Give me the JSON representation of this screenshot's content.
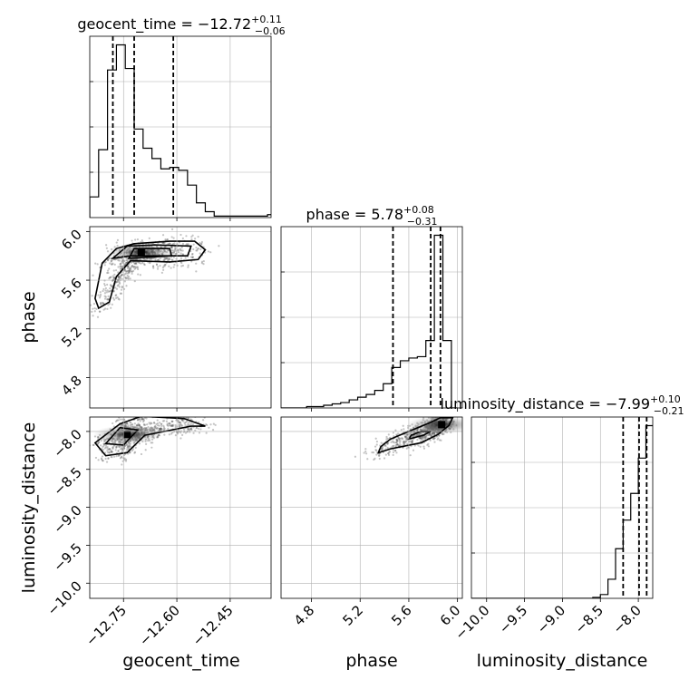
{
  "chart_data": {
    "type": "corner",
    "parameters": [
      "geocent_time",
      "phase",
      "luminosity_distance"
    ],
    "titles": [
      {
        "name": "geocent_time",
        "prefix": "geocent_time = ",
        "median": "−12.72",
        "upper": "+0.11",
        "lower": "−0.06"
      },
      {
        "name": "phase",
        "prefix": "phase = ",
        "median": "5.78",
        "upper": "+0.08",
        "lower": "−0.31"
      },
      {
        "name": "luminosity_distance",
        "prefix": "luminosity_distance = ",
        "median": "−7.99",
        "upper": "+0.10",
        "lower": "−0.21"
      }
    ],
    "ranges": {
      "geocent_time": [
        -12.845,
        -12.335
      ],
      "phase": [
        4.55,
        6.04
      ],
      "luminosity_distance": [
        -10.2,
        -7.81
      ]
    },
    "ticks": {
      "geocent_time": {
        "values": [
          -12.75,
          -12.6,
          -12.45
        ],
        "labels": [
          "−12.75",
          "−12.60",
          "−12.45"
        ]
      },
      "phase": {
        "values": [
          4.8,
          5.2,
          5.6,
          6.0
        ],
        "labels": [
          "4.8",
          "5.2",
          "5.6",
          "6.0"
        ]
      },
      "luminosity_distance": {
        "values": [
          -10.0,
          -9.5,
          -9.0,
          -8.5,
          -8.0
        ],
        "labels": [
          "−10.0",
          "−9.5",
          "−9.0",
          "−8.5",
          "−8.0"
        ]
      }
    },
    "quantiles": {
      "geocent_time": [
        -12.78,
        -12.72,
        -12.61
      ],
      "phase": [
        5.47,
        5.78,
        5.86
      ],
      "luminosity_distance": [
        -8.2,
        -7.99,
        -7.89
      ]
    },
    "histograms": {
      "geocent_time": {
        "bins": [
          -12.845,
          -12.82,
          -12.795,
          -12.77,
          -12.745,
          -12.72,
          -12.695,
          -12.67,
          -12.645,
          -12.62,
          -12.595,
          -12.57,
          -12.545,
          -12.52,
          -12.495,
          -12.47,
          -12.445,
          -12.42,
          -12.395,
          -12.37,
          -12.345,
          -12.335
        ],
        "counts": [
          0.14,
          0.46,
          1.0,
          1.17,
          1.01,
          0.6,
          0.47,
          0.4,
          0.33,
          0.34,
          0.32,
          0.22,
          0.1,
          0.04,
          0.01,
          0.01,
          0.01,
          0.01,
          0.01,
          0.01,
          0.02
        ]
      },
      "phase": {
        "bins": [
          4.55,
          4.62,
          4.69,
          4.76,
          4.83,
          4.9,
          4.97,
          5.04,
          5.11,
          5.18,
          5.25,
          5.32,
          5.39,
          5.46,
          5.53,
          5.6,
          5.67,
          5.74,
          5.81,
          5.88,
          5.95,
          6.0
        ],
        "counts": [
          0.0,
          0.0,
          0.0,
          0.01,
          0.01,
          0.02,
          0.03,
          0.04,
          0.06,
          0.08,
          0.1,
          0.13,
          0.18,
          0.3,
          0.35,
          0.37,
          0.38,
          0.5,
          1.28,
          0.5,
          0.0
        ]
      },
      "luminosity_distance": {
        "bins": [
          -10.2,
          -10.1,
          -10.0,
          -9.9,
          -9.8,
          -9.7,
          -9.6,
          -9.5,
          -9.4,
          -9.3,
          -9.2,
          -9.1,
          -9.0,
          -8.9,
          -8.8,
          -8.7,
          -8.6,
          -8.5,
          -8.4,
          -8.3,
          -8.2,
          -8.1,
          -8.0,
          -7.9,
          -7.81
        ],
        "counts": [
          0,
          0,
          0,
          0,
          0,
          0,
          0,
          0,
          0,
          0,
          0,
          0,
          0,
          0,
          0,
          0,
          0.01,
          0.04,
          0.2,
          0.52,
          0.82,
          1.1,
          1.47,
          1.81
        ]
      }
    },
    "joint": {
      "phase_vs_geocent_time": {
        "contours": [
          [
            [
              -12.83,
              5.45
            ],
            [
              -12.81,
              5.74
            ],
            [
              -12.77,
              5.86
            ],
            [
              -12.72,
              5.9
            ],
            [
              -12.62,
              5.92
            ],
            [
              -12.55,
              5.92
            ],
            [
              -12.52,
              5.85
            ],
            [
              -12.54,
              5.77
            ],
            [
              -12.62,
              5.75
            ],
            [
              -12.73,
              5.76
            ],
            [
              -12.77,
              5.63
            ],
            [
              -12.79,
              5.42
            ],
            [
              -12.82,
              5.37
            ]
          ],
          [
            [
              -12.78,
              5.78
            ],
            [
              -12.74,
              5.88
            ],
            [
              -12.66,
              5.89
            ],
            [
              -12.56,
              5.88
            ],
            [
              -12.57,
              5.8
            ],
            [
              -12.66,
              5.8
            ],
            [
              -12.73,
              5.8
            ]
          ],
          [
            [
              -12.735,
              5.78
            ],
            [
              -12.72,
              5.86
            ],
            [
              -12.62,
              5.86
            ],
            [
              -12.615,
              5.8
            ]
          ]
        ],
        "density_center": [
          -12.7,
          5.83
        ]
      },
      "luminosity_distance_vs_geocent_time": {
        "contours": [
          [
            [
              -12.83,
              -8.15
            ],
            [
              -12.8,
              -8.32
            ],
            [
              -12.74,
              -8.28
            ],
            [
              -12.69,
              -8.05
            ],
            [
              -12.56,
              -7.93
            ],
            [
              -12.52,
              -7.93
            ],
            [
              -12.58,
              -7.83
            ],
            [
              -12.7,
              -7.8
            ],
            [
              -12.76,
              -7.9
            ]
          ],
          [
            [
              -12.8,
              -8.16
            ],
            [
              -12.75,
              -8.18
            ],
            [
              -12.71,
              -7.98
            ],
            [
              -12.76,
              -7.95
            ]
          ]
        ],
        "density_center": [
          -12.74,
          -8.04
        ]
      },
      "luminosity_distance_vs_phase": {
        "contours": [
          [
            [
              5.35,
              -8.28
            ],
            [
              5.45,
              -8.23
            ],
            [
              5.7,
              -8.15
            ],
            [
              5.84,
              -8.04
            ],
            [
              5.93,
              -7.92
            ],
            [
              5.96,
              -7.82
            ],
            [
              5.86,
              -7.82
            ],
            [
              5.78,
              -7.88
            ],
            [
              5.6,
              -8.0
            ],
            [
              5.45,
              -8.1
            ],
            [
              5.37,
              -8.2
            ]
          ],
          [
            [
              5.6,
              -8.1
            ],
            [
              5.72,
              -8.05
            ],
            [
              5.78,
              -8.0
            ],
            [
              5.7,
              -8.0
            ],
            [
              5.62,
              -8.05
            ]
          ]
        ],
        "density_center": [
          5.87,
          -7.91
        ]
      }
    }
  }
}
